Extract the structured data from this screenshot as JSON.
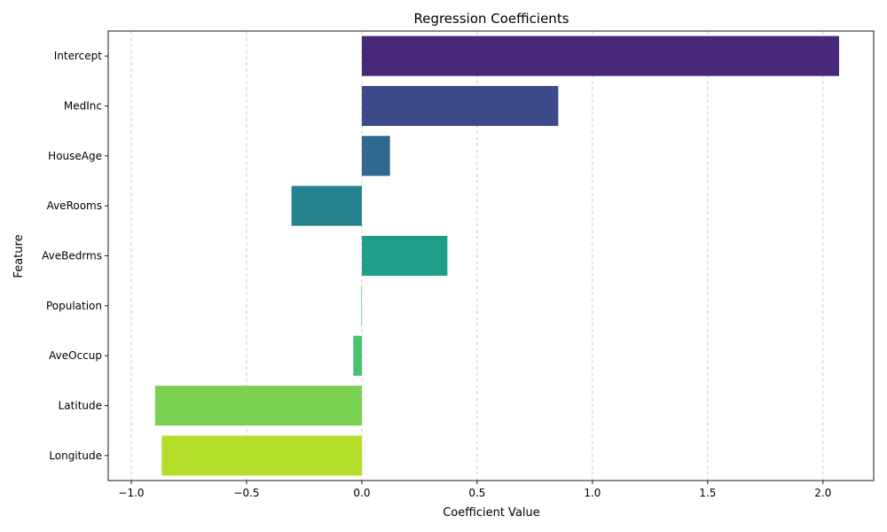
{
  "chart_data": {
    "type": "bar",
    "orientation": "horizontal",
    "title": "Regression Coefficients",
    "xlabel": "Coefficient Value",
    "ylabel": "Feature",
    "categories": [
      "Intercept",
      "MedInc",
      "HouseAge",
      "AveRooms",
      "AveBedrms",
      "Population",
      "AveOccup",
      "Latitude",
      "Longitude"
    ],
    "values": [
      2.07,
      0.852,
      0.122,
      -0.305,
      0.371,
      -0.002,
      -0.037,
      -0.897,
      -0.868
    ],
    "colors": [
      "#482878",
      "#3e4989",
      "#31688e",
      "#26828e",
      "#1f9e89",
      "#35b779",
      "#4ac16d",
      "#7ad151",
      "#b5de2b"
    ],
    "xlim": [
      -1.1,
      2.22
    ],
    "xticks": [
      -1.0,
      -0.5,
      0.0,
      0.5,
      1.0,
      1.5,
      2.0
    ],
    "xtick_labels": [
      "−1.0",
      "−0.5",
      "0.0",
      "0.5",
      "1.0",
      "1.5",
      "2.0"
    ],
    "grid": "x-axis dashed"
  }
}
